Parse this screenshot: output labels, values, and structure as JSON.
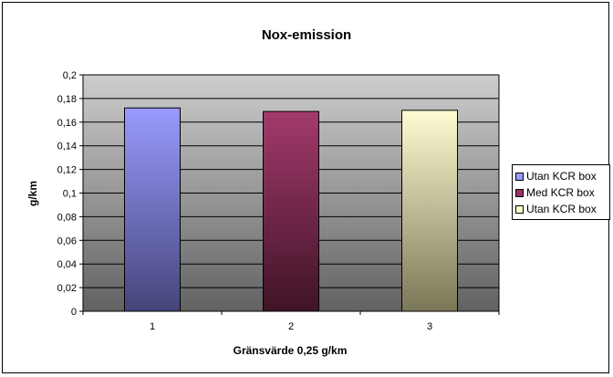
{
  "chart_data": {
    "type": "bar",
    "title": "Nox-emission",
    "xlabel": "Gränsvärde 0,25 g/km",
    "ylabel": "g/km",
    "categories": [
      "1",
      "2",
      "3"
    ],
    "values": [
      0.172,
      0.169,
      0.17
    ],
    "ylim": [
      0,
      0.2
    ],
    "yticks": [
      "0",
      "0,02",
      "0,04",
      "0,06",
      "0,08",
      "0,1",
      "0,12",
      "0,14",
      "0,16",
      "0,18",
      "0,2"
    ],
    "grid": true,
    "legend_position": "right",
    "legend": [
      {
        "label": "Utan KCR box",
        "color": "#9999ff"
      },
      {
        "label": "Med KCR box",
        "color": "#993366"
      },
      {
        "label": "Utan KCR box",
        "color": "#ffffcc"
      }
    ],
    "bar_gradients": [
      {
        "top": "#9a9aff",
        "bottom": "#45457a"
      },
      {
        "top": "#a33a6c",
        "bottom": "#3f1426"
      },
      {
        "top": "#fffbd2",
        "bottom": "#7a7757"
      }
    ]
  }
}
